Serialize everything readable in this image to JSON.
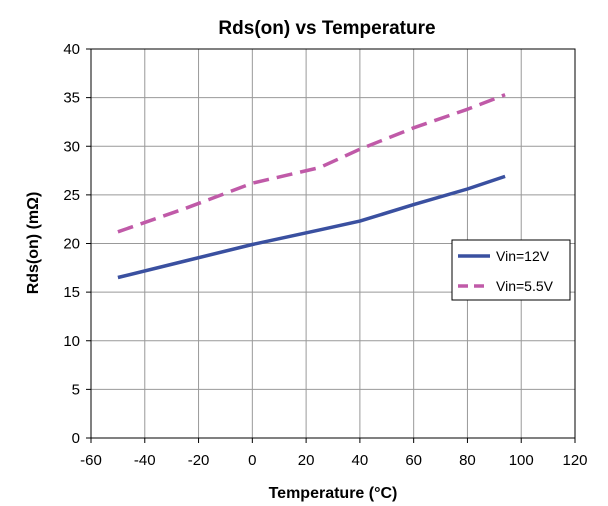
{
  "chart_data": {
    "type": "line",
    "title": "Rds(on) vs Temperature",
    "xlabel": "Temperature (°C)",
    "ylabel": "Rds(on) (mΩ)",
    "xlim": [
      -60,
      120
    ],
    "ylim": [
      0,
      40
    ],
    "xticks": [
      -60,
      -40,
      -20,
      0,
      20,
      40,
      60,
      80,
      100,
      120
    ],
    "yticks": [
      0,
      5,
      10,
      15,
      20,
      25,
      30,
      35,
      40
    ],
    "grid": true,
    "legend_position": "right",
    "series": [
      {
        "name": "Vin=12V",
        "color": "#3a50a0",
        "style": "solid",
        "x": [
          -50,
          -25,
          0,
          25,
          40,
          60,
          80,
          94
        ],
        "y": [
          16.5,
          18.2,
          19.9,
          21.4,
          22.3,
          24.0,
          25.6,
          26.9
        ]
      },
      {
        "name": "Vin=5.5V",
        "color": "#c05aa8",
        "style": "dashed",
        "x": [
          -50,
          -25,
          0,
          25,
          40,
          60,
          80,
          94
        ],
        "y": [
          21.2,
          23.6,
          26.2,
          27.8,
          29.7,
          31.9,
          33.8,
          35.3
        ]
      }
    ]
  }
}
